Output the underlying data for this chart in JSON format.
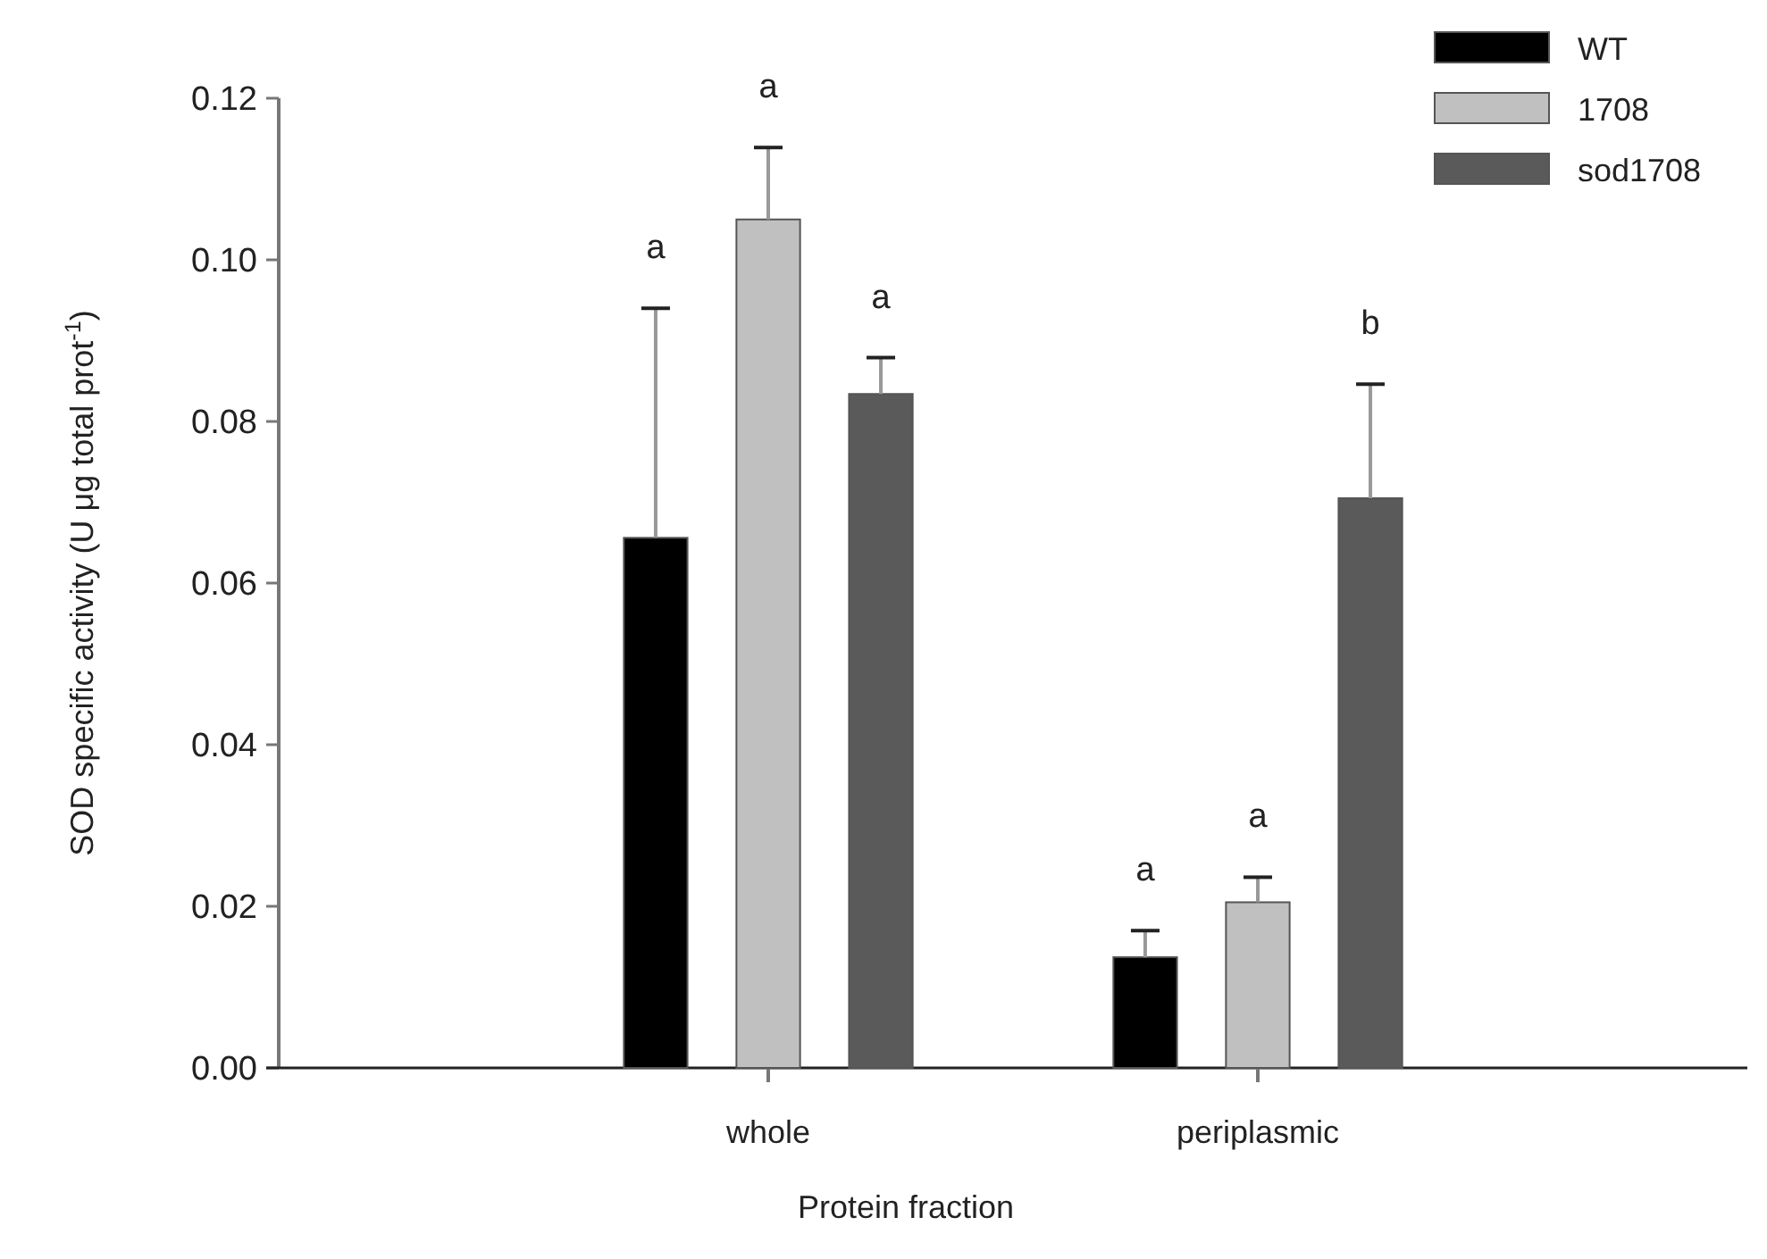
{
  "chart_data": {
    "type": "bar",
    "xlabel": "Protein fraction",
    "ylabel": "SOD specific activity (U μg total prot$^{-1}$)",
    "categories": [
      "whole",
      "periplasmic"
    ],
    "series": [
      {
        "name": "WT",
        "color": "#000000",
        "values": [
          0.0656,
          0.0137
        ],
        "errors": [
          [
            0.0656,
            0.094
          ],
          [
            0.0137,
            0.017
          ]
        ]
      },
      {
        "name": "1708",
        "color": "#c0c0c0",
        "values": [
          0.105,
          0.0205
        ],
        "errors": [
          [
            0.105,
            0.1139
          ],
          [
            0.0205,
            0.0236
          ]
        ]
      },
      {
        "name": "sod1708",
        "color": "#5a5a5a",
        "values": [
          0.0834,
          0.0705
        ],
        "errors": [
          [
            0.0834,
            0.0879
          ],
          [
            0.0705,
            0.0846
          ]
        ]
      }
    ],
    "ylim": [
      0,
      0.12
    ],
    "yticks": [
      {
        "value": 0,
        "label": "0.00"
      },
      {
        "value": 0.02,
        "label": "0.02"
      },
      {
        "value": 0.04,
        "label": "0.04"
      },
      {
        "value": 0.06,
        "label": "0.06"
      },
      {
        "value": 0.08,
        "label": "0.08"
      },
      {
        "value": 0.1,
        "label": "0.10"
      },
      {
        "value": 0.12,
        "label": "0.12"
      }
    ],
    "annotations": [
      "a",
      "a",
      "a",
      "a",
      "a",
      "b"
    ],
    "legend": "top right",
    "grid": false
  }
}
